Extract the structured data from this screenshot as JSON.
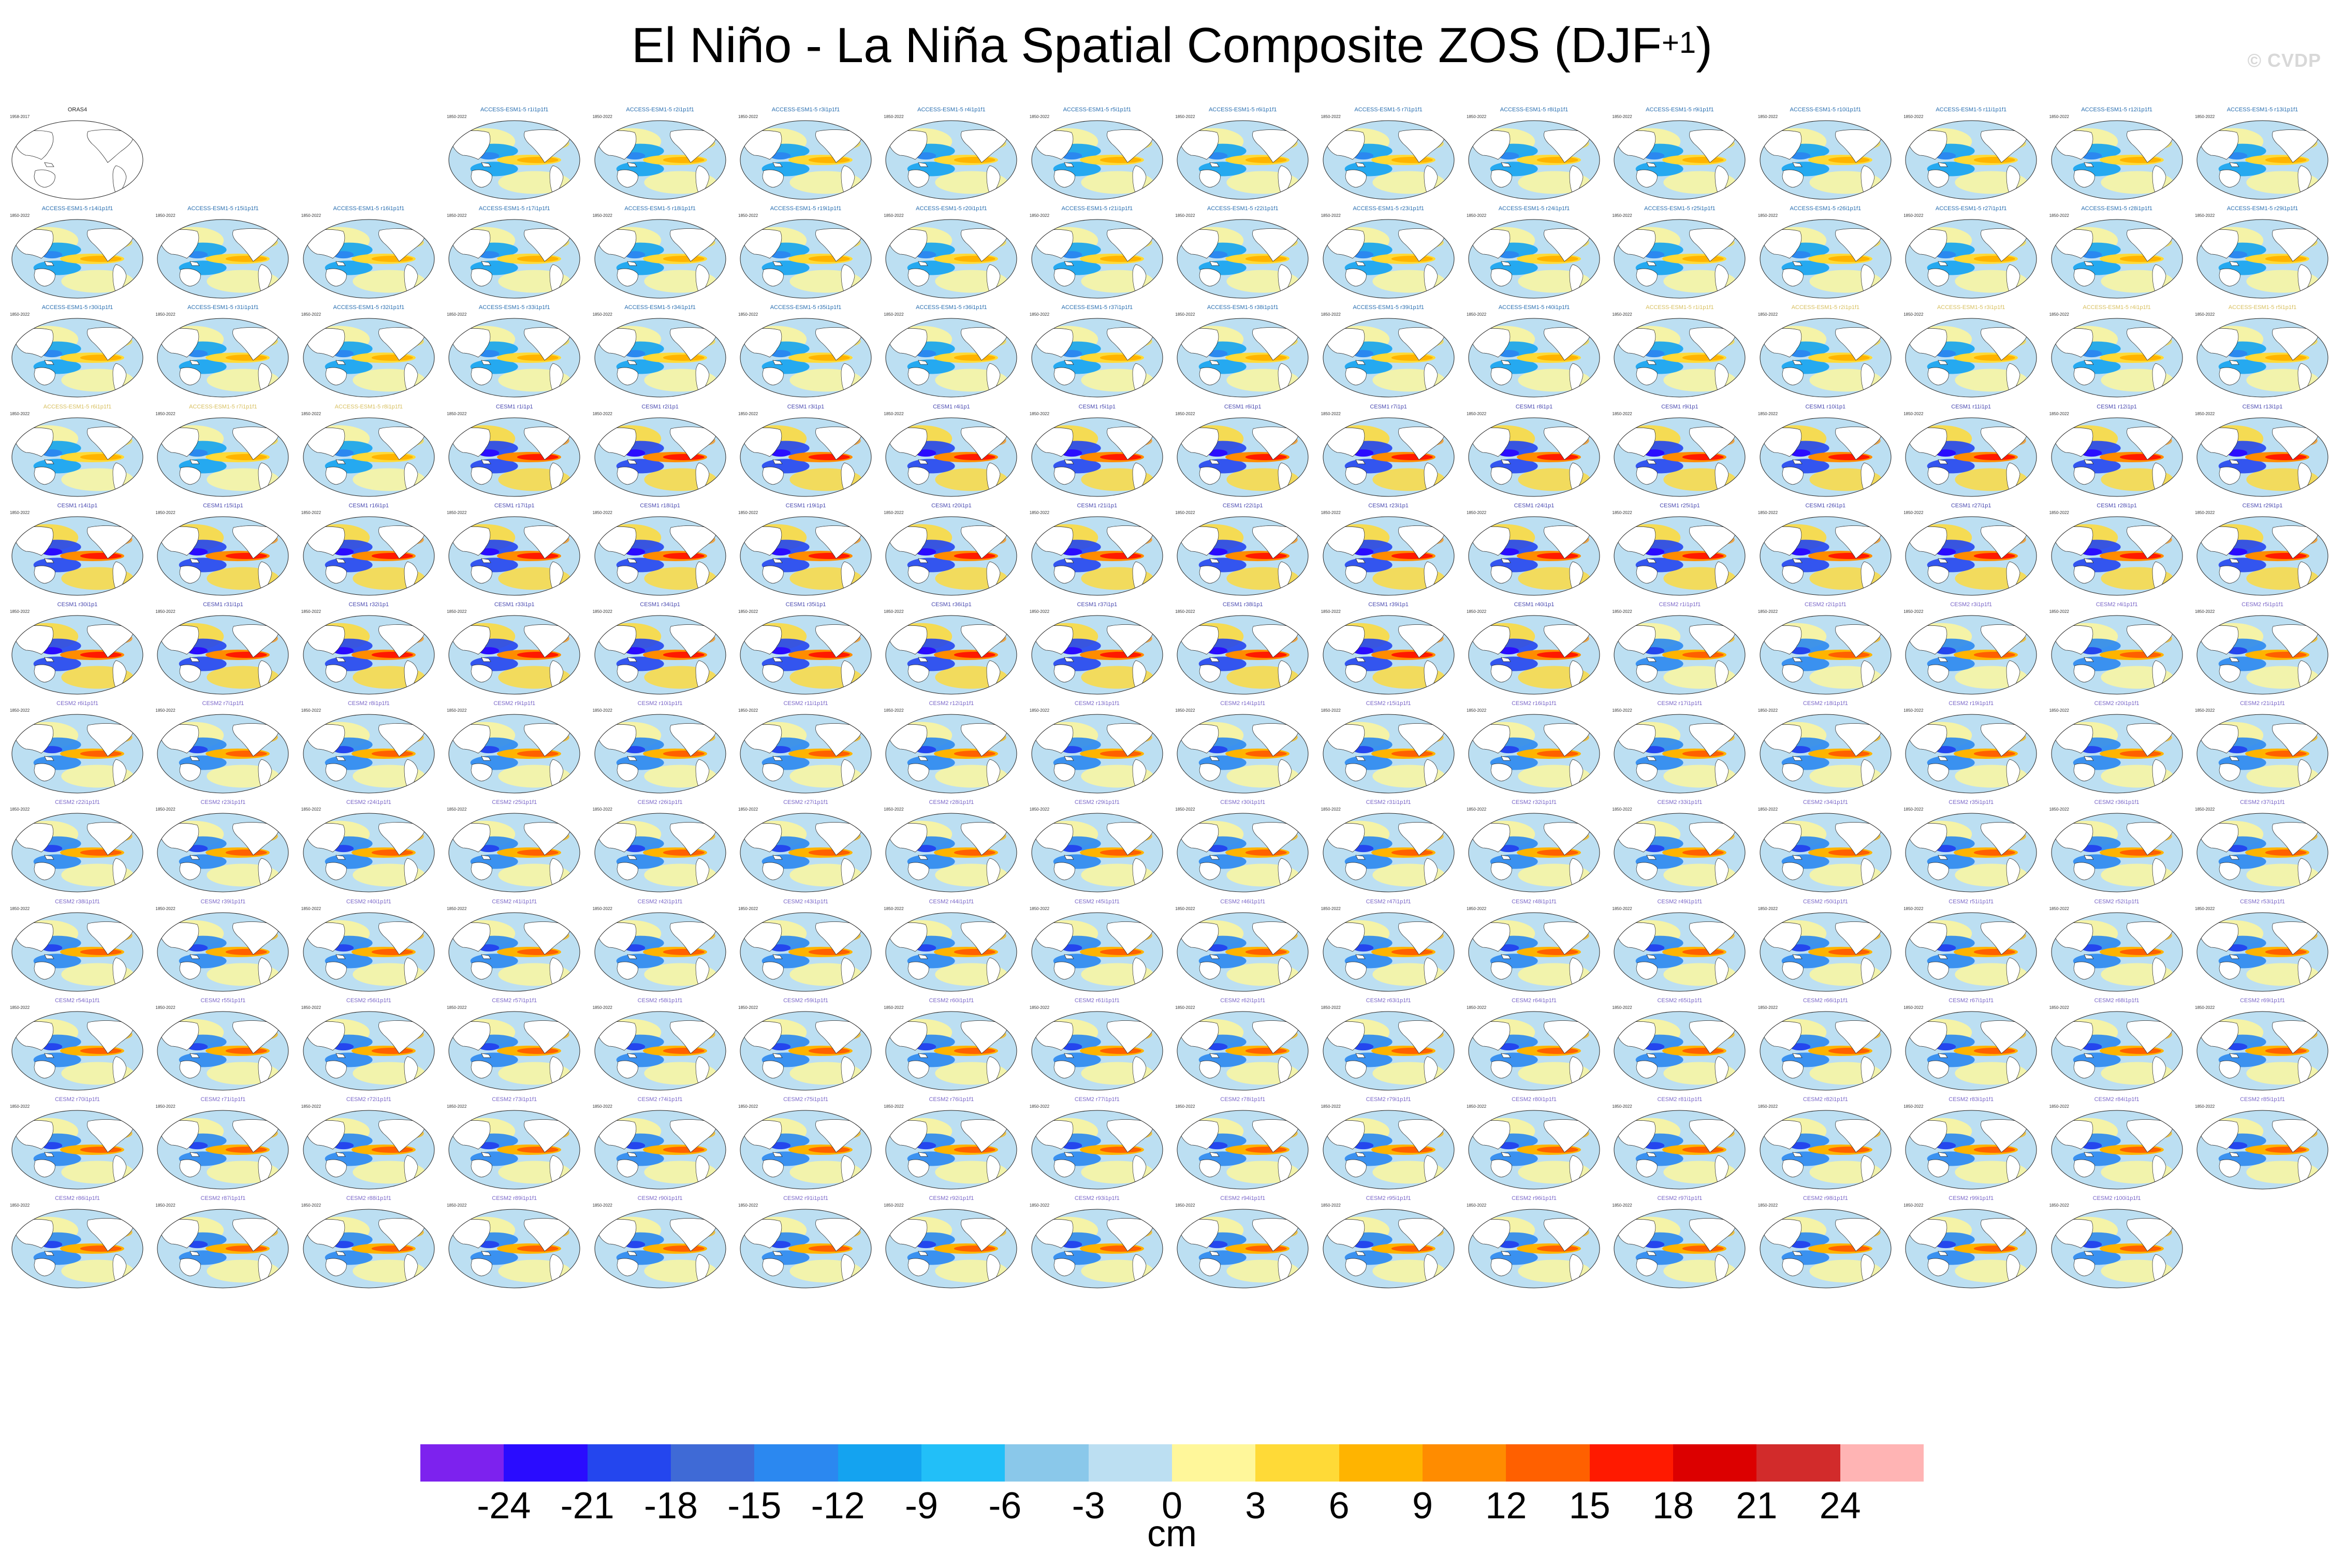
{
  "title": {
    "main": "El Niño - La Niña Spatial Composite ZOS (DJF",
    "superscript": "+1",
    "close": ")"
  },
  "watermark": "© CVDP",
  "panel_grid": {
    "rows": 13,
    "cols": 16,
    "observation": {
      "title": "ORAS4",
      "years": "1958-2017"
    },
    "model_years": "1850-2022",
    "groups": [
      {
        "model": "ACCESS-ESM1-5",
        "count": 40,
        "member_format": "r{n}i1p1f1",
        "title_color": "#2a6fb0",
        "style": "yellow"
      },
      {
        "model": "ACCESS-ESM1-5",
        "count": 8,
        "member_format": "r{n}i1p1f1",
        "title_color": "#d8c060",
        "style": "yellow"
      },
      {
        "model": "CESM1",
        "count": 40,
        "member_format": "r{n}i1p1",
        "title_color": "#4a4ab0",
        "style": "strong"
      },
      {
        "model": "CESM2",
        "count": 100,
        "member_format": "r{n}i1p1f1",
        "title_color": "#7a66c8",
        "style": "cesm2"
      }
    ]
  },
  "colorbar": {
    "colors": [
      "#7d22ee",
      "#2a0cff",
      "#2446ee",
      "#3f6ad6",
      "#2b88f0",
      "#14a3f0",
      "#22bff8",
      "#8ac8ea",
      "#bcdff2",
      "#fff79a",
      "#ffda37",
      "#ffb400",
      "#ff8c00",
      "#ff6000",
      "#ff1a00",
      "#dc0000",
      "#d22b2b",
      "#ffb4b4"
    ],
    "tick_labels": [
      "-24",
      "-21",
      "-18",
      "-15",
      "-12",
      "-9",
      "-6",
      "-3",
      "0",
      "3",
      "6",
      "9",
      "12",
      "15",
      "18",
      "21",
      "24"
    ],
    "units": "cm"
  }
}
